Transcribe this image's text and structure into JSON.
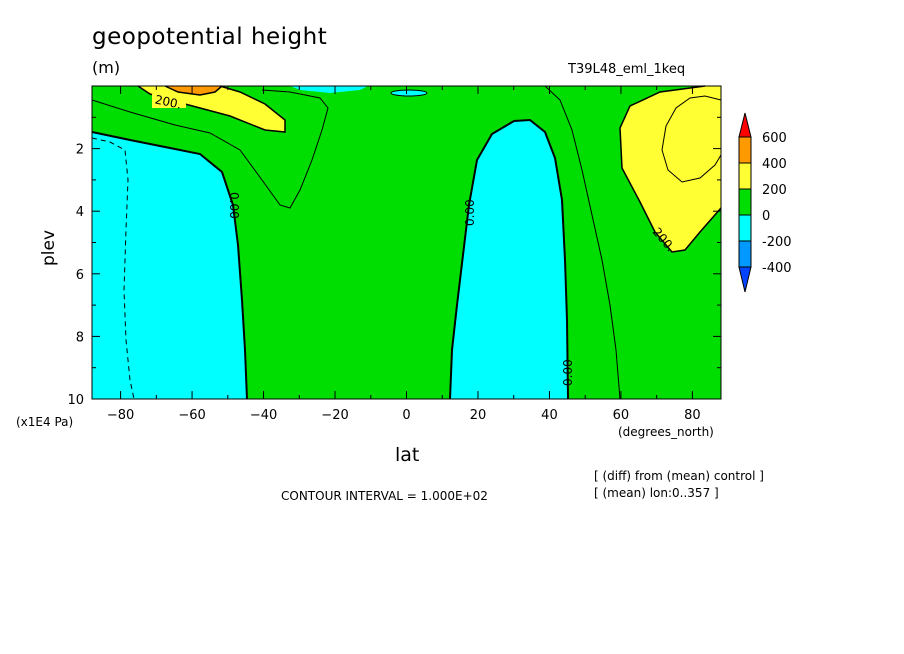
{
  "chart_data": {
    "type": "heatmap",
    "title": "geopotential height",
    "units": "(m)",
    "run_label": "T39L48_eml_1keq",
    "xlabel": "lat",
    "ylabel": "plev",
    "x_unit": "(degrees_north)",
    "y_unit": "(x1E4 Pa)",
    "xlim": [
      -88,
      88
    ],
    "ylim": [
      0,
      10
    ],
    "y_inverted": true,
    "x_ticks": [
      "-80",
      "-60",
      "-40",
      "-20",
      "0",
      "20",
      "40",
      "60",
      "80"
    ],
    "y_ticks": [
      "2",
      "4",
      "6",
      "8",
      "10"
    ],
    "contour_labels": [
      "200.",
      "0.00",
      "0.00",
      "0.00",
      "200."
    ],
    "colorbar": {
      "labels": [
        "600",
        "400",
        "200",
        "0",
        "-200",
        "-400"
      ],
      "colors": [
        "#ff0000",
        "#ff9900",
        "#ffff33",
        "#00dd00",
        "#00ffff",
        "#0099ff",
        "#0044ff"
      ]
    },
    "notes": [
      "[ (diff) from (mean) control ]",
      "[ (mean) lon:0..357 ]"
    ],
    "contour_interval": "CONTOUR INTERVAL = 1.000E+02"
  }
}
